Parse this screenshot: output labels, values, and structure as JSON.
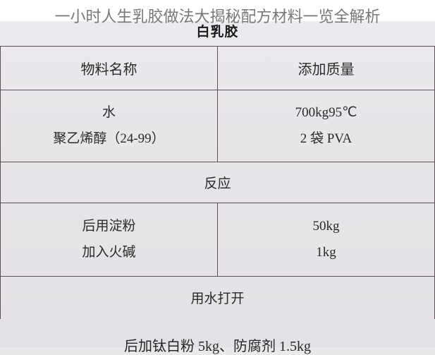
{
  "page_title": "一小时人生乳胶做法大揭秘配方材料一览全解析",
  "doc_subtitle": "白乳胶",
  "table": {
    "header": {
      "left": "物料名称",
      "right": "添加质量"
    },
    "section1": {
      "left_line1": "水",
      "left_line2": "聚乙烯醇（24-99）",
      "right_line1": "700kg95℃",
      "right_line2": "2 袋 PVA"
    },
    "spanner1": "反应",
    "section2": {
      "left_line1": "后用淀粉",
      "left_line2": "加入火碱",
      "right_line1": "50kg",
      "right_line2": "1kg"
    },
    "spanner2": "用水打开"
  },
  "footer": "后加钛白粉 5kg、防腐剂 1.5kg",
  "colors": {
    "title_text": "#787878",
    "body_text": "#2a2a2a",
    "border": "#5a5256",
    "paper_bg": "#e9e8ea",
    "title_bg": "#ffffff"
  }
}
